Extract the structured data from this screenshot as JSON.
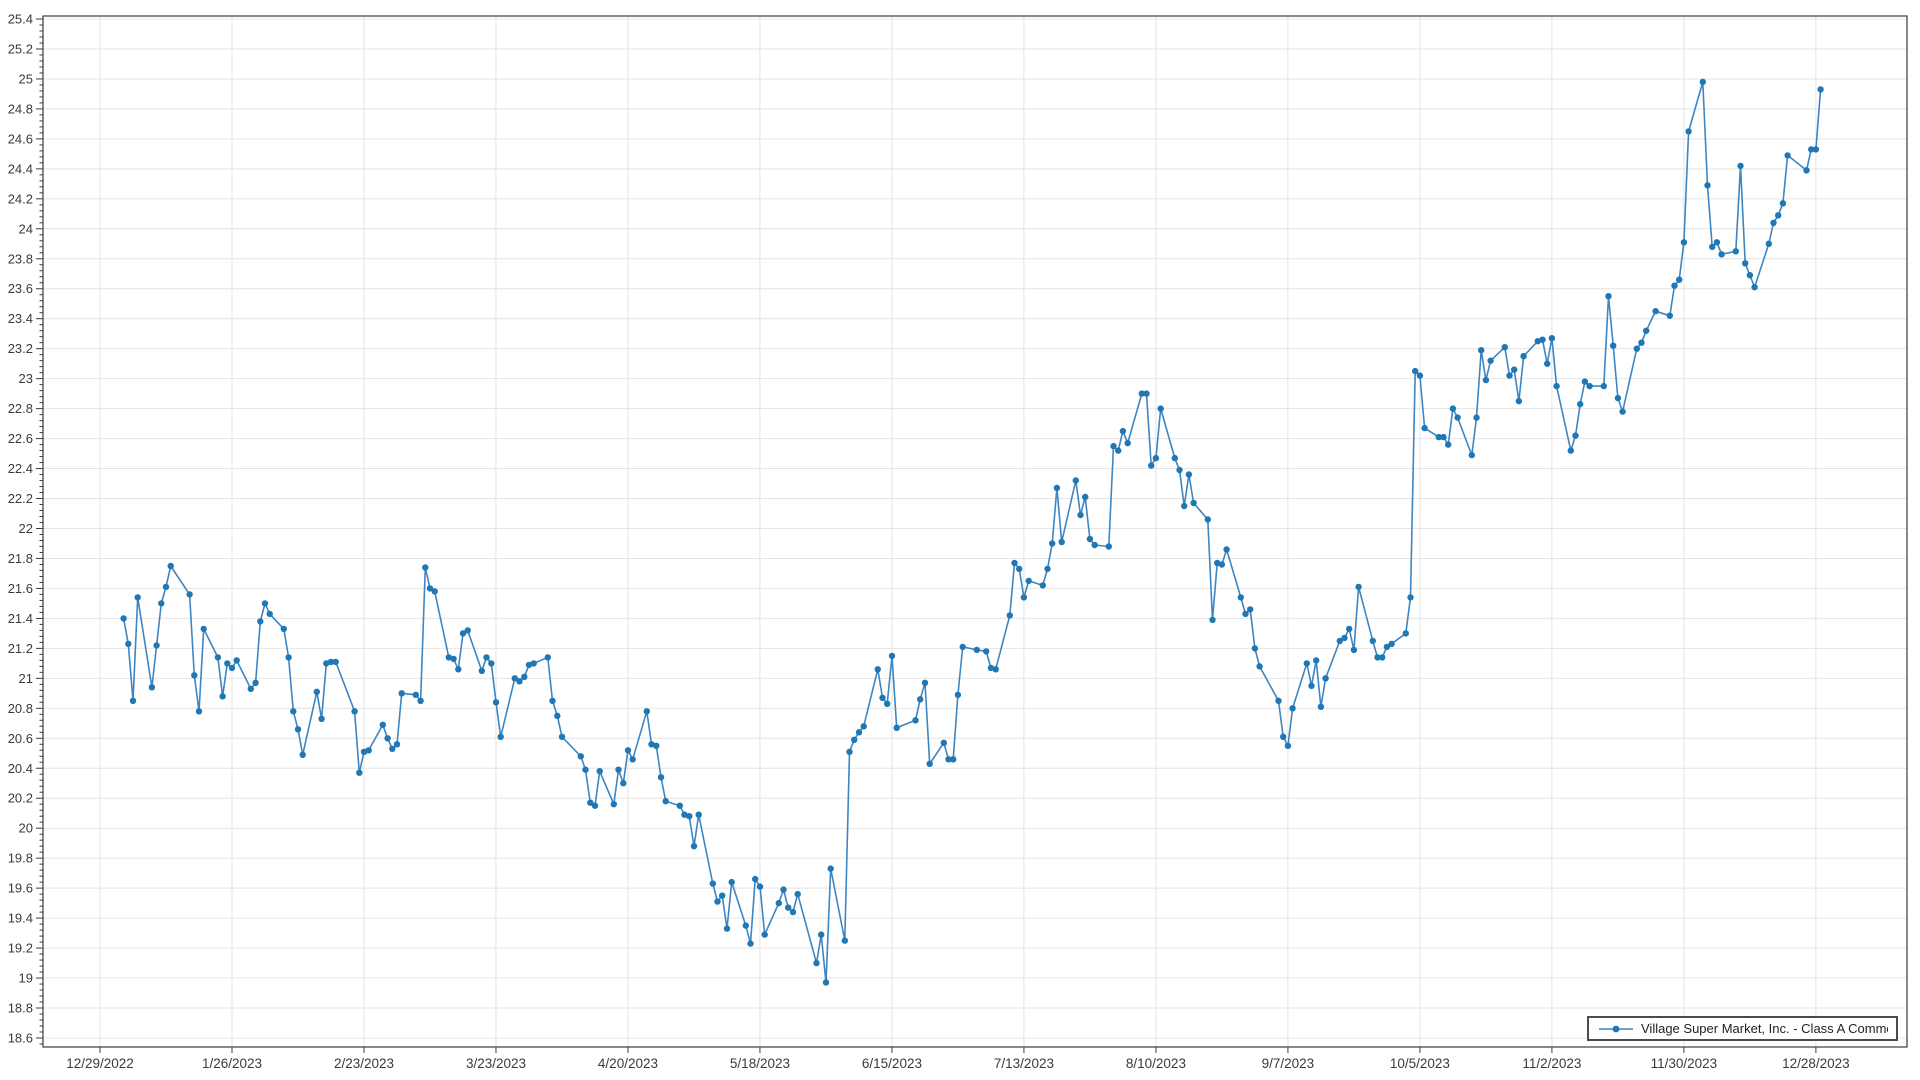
{
  "window": {
    "background": "#ffffff"
  },
  "legend": {
    "label": "Village Super Market, Inc. - Class A Common Stock",
    "position": "bottom-right"
  },
  "colors": {
    "line": "#3d86c3",
    "marker": "#1f77b4",
    "grid": "#e4e4e4",
    "axis": "#3b3b3b",
    "tick_text": "#3a3a3a",
    "legend_border": "#4b4b4b",
    "background": "#ffffff"
  },
  "chart_data": {
    "type": "line",
    "title": "",
    "xlabel": "",
    "ylabel": "",
    "grid": true,
    "legend_position": "bottom-right",
    "series_name": "Village Super Market, Inc. - Class A Common Stock",
    "y_axis": {
      "min": 18.55,
      "max": 25.42,
      "major_step": 0.2,
      "minor_step": 0.04,
      "tick_labels": [
        "18.6",
        "18.8",
        "19",
        "19.2",
        "19.4",
        "19.6",
        "19.8",
        "20",
        "20.2",
        "20.4",
        "20.6",
        "20.8",
        "21",
        "21.2",
        "21.4",
        "21.6",
        "21.8",
        "22",
        "22.2",
        "22.4",
        "22.6",
        "22.8",
        "23",
        "23.2",
        "23.4",
        "23.6",
        "23.8",
        "24",
        "24.2",
        "24.4",
        "24.6",
        "24.8",
        "25",
        "25.2",
        "25.4"
      ]
    },
    "x_axis": {
      "tick_interval_days": 28,
      "tick_labels": [
        "12/29/2022",
        "1/26/2023",
        "2/23/2023",
        "3/23/2023",
        "4/20/2023",
        "5/18/2023",
        "6/15/2023",
        "7/13/2023",
        "8/10/2023",
        "9/7/2023",
        "10/5/2023",
        "11/2/2023",
        "11/30/2023",
        "12/28/2023"
      ]
    },
    "year": 2023,
    "dates": [
      "1/3",
      "1/4",
      "1/5",
      "1/6",
      "1/9",
      "1/10",
      "1/11",
      "1/12",
      "1/13",
      "1/17",
      "1/18",
      "1/19",
      "1/20",
      "1/23",
      "1/24",
      "1/25",
      "1/26",
      "1/27",
      "1/30",
      "1/31",
      "2/1",
      "2/2",
      "2/3",
      "2/6",
      "2/7",
      "2/8",
      "2/9",
      "2/10",
      "2/13",
      "2/14",
      "2/15",
      "2/16",
      "2/17",
      "2/21",
      "2/22",
      "2/23",
      "2/24",
      "2/27",
      "2/28",
      "3/1",
      "3/2",
      "3/3",
      "3/6",
      "3/7",
      "3/8",
      "3/9",
      "3/10",
      "3/13",
      "3/14",
      "3/15",
      "3/16",
      "3/17",
      "3/20",
      "3/21",
      "3/22",
      "3/23",
      "3/24",
      "3/27",
      "3/28",
      "3/29",
      "3/30",
      "3/31",
      "4/3",
      "4/4",
      "4/5",
      "4/6",
      "4/10",
      "4/11",
      "4/12",
      "4/13",
      "4/14",
      "4/17",
      "4/18",
      "4/19",
      "4/20",
      "4/21",
      "4/24",
      "4/25",
      "4/26",
      "4/27",
      "4/28",
      "5/1",
      "5/2",
      "5/3",
      "5/4",
      "5/5",
      "5/8",
      "5/9",
      "5/10",
      "5/11",
      "5/12",
      "5/15",
      "5/16",
      "5/17",
      "5/18",
      "5/19",
      "5/22",
      "5/23",
      "5/24",
      "5/25",
      "5/26",
      "5/30",
      "5/31",
      "6/1",
      "6/2",
      "6/5",
      "6/6",
      "6/7",
      "6/8",
      "6/9",
      "6/12",
      "6/13",
      "6/14",
      "6/15",
      "6/16",
      "6/20",
      "6/21",
      "6/22",
      "6/23",
      "6/26",
      "6/27",
      "6/28",
      "6/29",
      "6/30",
      "7/3",
      "7/5",
      "7/6",
      "7/7",
      "7/10",
      "7/11",
      "7/12",
      "7/13",
      "7/14",
      "7/17",
      "7/18",
      "7/19",
      "7/20",
      "7/21",
      "7/24",
      "7/25",
      "7/26",
      "7/27",
      "7/28",
      "7/31",
      "8/1",
      "8/2",
      "8/3",
      "8/4",
      "8/7",
      "8/8",
      "8/9",
      "8/10",
      "8/11",
      "8/14",
      "8/15",
      "8/16",
      "8/17",
      "8/18",
      "8/21",
      "8/22",
      "8/23",
      "8/24",
      "8/25",
      "8/28",
      "8/29",
      "8/30",
      "8/31",
      "9/1",
      "9/5",
      "9/6",
      "9/7",
      "9/8",
      "9/11",
      "9/12",
      "9/13",
      "9/14",
      "9/15",
      "9/18",
      "9/19",
      "9/20",
      "9/21",
      "9/22",
      "9/25",
      "9/26",
      "9/27",
      "9/28",
      "9/29",
      "10/2",
      "10/3",
      "10/4",
      "10/5",
      "10/6",
      "10/9",
      "10/10",
      "10/11",
      "10/12",
      "10/13",
      "10/16",
      "10/17",
      "10/18",
      "10/19",
      "10/20",
      "10/23",
      "10/24",
      "10/25",
      "10/26",
      "10/27",
      "10/30",
      "10/31",
      "11/1",
      "11/2",
      "11/3",
      "11/6",
      "11/7",
      "11/8",
      "11/9",
      "11/10",
      "11/13",
      "11/14",
      "11/15",
      "11/16",
      "11/17",
      "11/20",
      "11/21",
      "11/22",
      "11/24",
      "11/27",
      "11/28",
      "11/29",
      "11/30",
      "12/1",
      "12/4",
      "12/5",
      "12/6",
      "12/7",
      "12/8",
      "12/11",
      "12/12",
      "12/13",
      "12/14",
      "12/15",
      "12/18",
      "12/19",
      "12/20",
      "12/21",
      "12/22",
      "12/26",
      "12/27",
      "12/28",
      "12/29"
    ],
    "values": [
      21.4,
      21.23,
      20.85,
      21.54,
      20.94,
      21.22,
      21.5,
      21.61,
      21.75,
      21.56,
      21.02,
      20.78,
      21.33,
      21.14,
      20.88,
      21.1,
      21.07,
      21.12,
      20.93,
      20.97,
      21.38,
      21.5,
      21.43,
      21.33,
      21.14,
      20.78,
      20.66,
      20.49,
      20.91,
      20.73,
      21.1,
      21.11,
      21.11,
      20.78,
      20.37,
      20.51,
      20.52,
      20.69,
      20.6,
      20.53,
      20.56,
      20.9,
      20.89,
      20.85,
      21.74,
      21.6,
      21.58,
      21.14,
      21.13,
      21.06,
      21.3,
      21.32,
      21.05,
      21.14,
      21.1,
      20.84,
      20.61,
      21.0,
      20.98,
      21.01,
      21.09,
      21.1,
      21.14,
      20.85,
      20.75,
      20.61,
      20.48,
      20.39,
      20.17,
      20.15,
      20.38,
      20.16,
      20.39,
      20.3,
      20.52,
      20.46,
      20.78,
      20.56,
      20.55,
      20.34,
      20.18,
      20.15,
      20.09,
      20.08,
      19.88,
      20.09,
      19.63,
      19.51,
      19.55,
      19.33,
      19.64,
      19.35,
      19.23,
      19.66,
      19.61,
      19.29,
      19.5,
      19.59,
      19.47,
      19.44,
      19.56,
      19.1,
      19.29,
      18.97,
      19.73,
      19.25,
      20.51,
      20.59,
      20.64,
      20.68,
      21.06,
      20.87,
      20.83,
      21.15,
      20.67,
      20.72,
      20.86,
      20.97,
      20.43,
      20.57,
      20.46,
      20.46,
      20.89,
      21.21,
      21.19,
      21.18,
      21.07,
      21.06,
      21.42,
      21.77,
      21.73,
      21.54,
      21.65,
      21.62,
      21.73,
      21.9,
      22.27,
      21.91,
      22.32,
      22.09,
      22.21,
      21.93,
      21.89,
      21.88,
      22.55,
      22.52,
      22.65,
      22.57,
      22.9,
      22.9,
      22.42,
      22.47,
      22.8,
      22.47,
      22.39,
      22.15,
      22.36,
      22.17,
      22.06,
      21.39,
      21.77,
      21.76,
      21.86,
      21.54,
      21.43,
      21.46,
      21.2,
      21.08,
      20.85,
      20.61,
      20.55,
      20.8,
      21.1,
      20.95,
      21.12,
      20.81,
      21.0,
      21.25,
      21.27,
      21.33,
      21.19,
      21.61,
      21.25,
      21.14,
      21.14,
      21.21,
      21.23,
      21.3,
      21.54,
      23.05,
      23.02,
      22.67,
      22.61,
      22.61,
      22.56,
      22.8,
      22.74,
      22.49,
      22.74,
      23.19,
      22.99,
      23.12,
      23.21,
      23.02,
      23.06,
      22.85,
      23.15,
      23.25,
      23.26,
      23.1,
      23.27,
      22.95,
      22.52,
      22.62,
      22.83,
      22.98,
      22.95,
      22.95,
      23.55,
      23.22,
      22.87,
      22.78,
      23.2,
      23.24,
      23.32,
      23.45,
      23.42,
      23.62,
      23.66,
      23.91,
      24.65,
      24.98,
      24.29,
      23.88,
      23.91,
      23.83,
      23.85,
      24.42,
      23.77,
      23.69,
      23.61,
      23.9,
      24.04,
      24.09,
      24.17,
      24.49,
      24.39,
      24.53,
      24.53,
      24.93
    ]
  }
}
